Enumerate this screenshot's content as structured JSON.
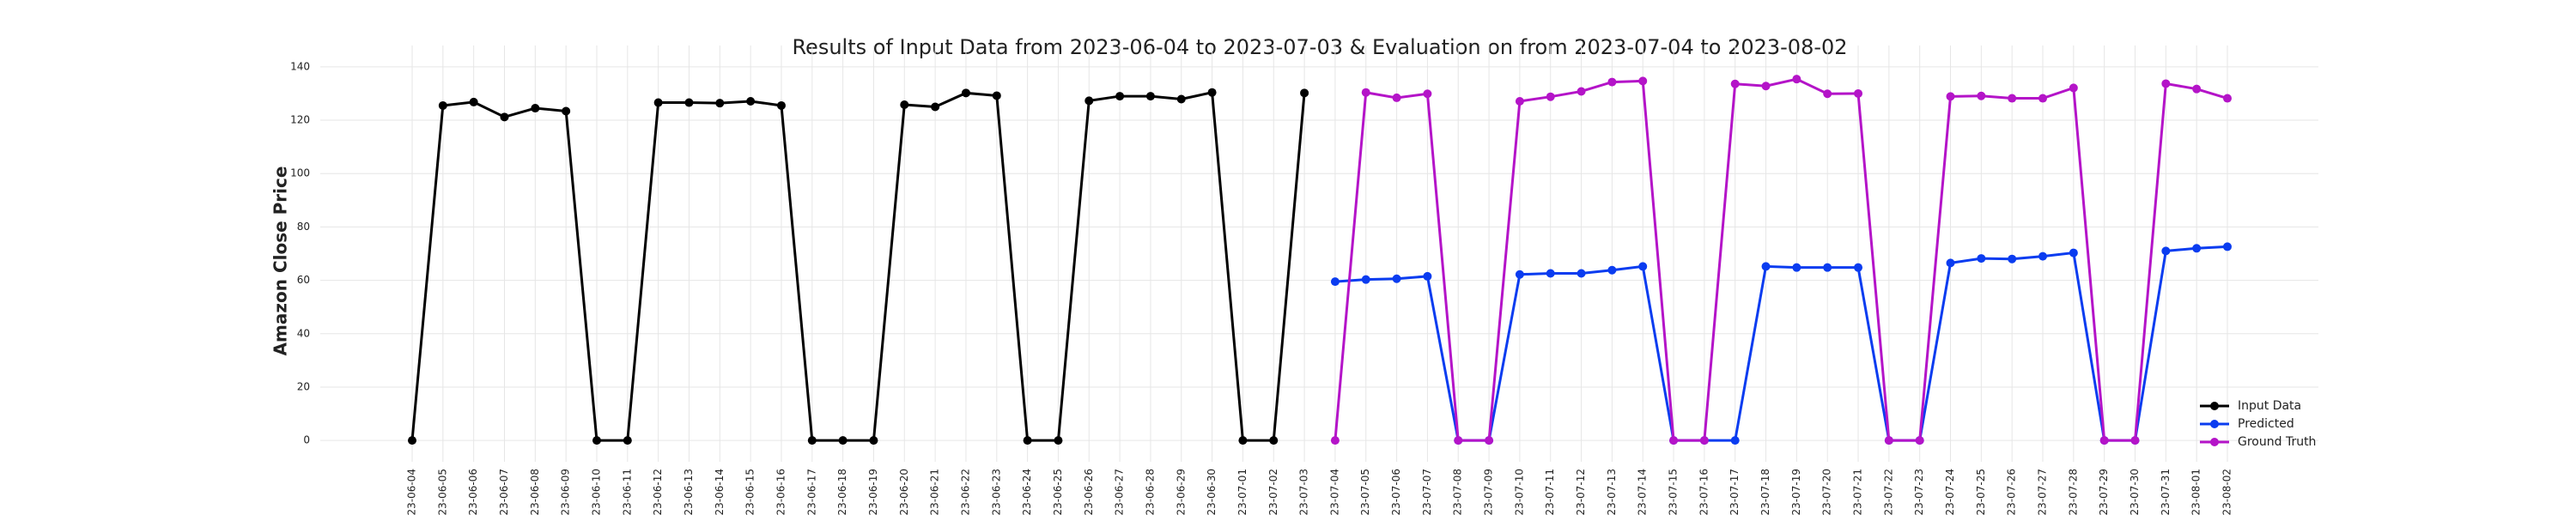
{
  "chart_data": {
    "type": "line",
    "title": "Results of Input Data from 2023-06-04 to 2023-07-03 & Evaluation on from 2023-07-04 to 2023-08-02",
    "y_label": "Amazon Close Price",
    "categories": [
      "2023-06-04",
      "2023-06-05",
      "2023-06-06",
      "2023-06-07",
      "2023-06-08",
      "2023-06-09",
      "2023-06-10",
      "2023-06-11",
      "2023-06-12",
      "2023-06-13",
      "2023-06-14",
      "2023-06-15",
      "2023-06-16",
      "2023-06-17",
      "2023-06-18",
      "2023-06-19",
      "2023-06-20",
      "2023-06-21",
      "2023-06-22",
      "2023-06-23",
      "2023-06-24",
      "2023-06-25",
      "2023-06-26",
      "2023-06-27",
      "2023-06-28",
      "2023-06-29",
      "2023-06-30",
      "2023-07-01",
      "2023-07-02",
      "2023-07-03",
      "2023-07-04",
      "2023-07-05",
      "2023-07-06",
      "2023-07-07",
      "2023-07-08",
      "2023-07-09",
      "2023-07-10",
      "2023-07-11",
      "2023-07-12",
      "2023-07-13",
      "2023-07-14",
      "2023-07-15",
      "2023-07-16",
      "2023-07-17",
      "2023-07-18",
      "2023-07-19",
      "2023-07-20",
      "2023-07-21",
      "2023-07-22",
      "2023-07-23",
      "2023-07-24",
      "2023-07-25",
      "2023-07-26",
      "2023-07-27",
      "2023-07-28",
      "2023-07-29",
      "2023-07-30",
      "2023-07-31",
      "2023-08-01",
      "2023-08-02"
    ],
    "series": [
      {
        "name": "Input Data",
        "color": "#000000",
        "values": [
          0,
          125.5,
          126.8,
          121.2,
          124.5,
          123.4,
          0,
          0,
          126.6,
          126.6,
          126.4,
          127.1,
          125.5,
          0,
          0,
          0,
          125.8,
          125.0,
          130.2,
          129.2,
          0,
          0,
          127.3,
          129.0,
          129.0,
          127.9,
          130.4,
          0,
          0,
          130.2,
          null,
          null,
          null,
          null,
          null,
          null,
          null,
          null,
          null,
          null,
          null,
          null,
          null,
          null,
          null,
          null,
          null,
          null,
          null,
          null,
          null,
          null,
          null,
          null,
          null,
          null,
          null,
          null,
          null,
          null
        ]
      },
      {
        "name": "Predicted",
        "color": "#0a3cf0",
        "values": [
          null,
          null,
          null,
          null,
          null,
          null,
          null,
          null,
          null,
          null,
          null,
          null,
          null,
          null,
          null,
          null,
          null,
          null,
          null,
          null,
          null,
          null,
          null,
          null,
          null,
          null,
          null,
          null,
          null,
          null,
          59.5,
          60.3,
          60.6,
          61.5,
          0,
          0,
          62.2,
          62.6,
          62.6,
          63.8,
          65.2,
          0,
          0,
          0,
          65.2,
          64.8,
          64.8,
          64.8,
          0,
          0,
          66.5,
          68.2,
          68.0,
          69.0,
          70.3,
          0,
          0,
          71.0,
          72.0,
          72.6
        ]
      },
      {
        "name": "Ground Truth",
        "color": "#b414c8",
        "values": [
          null,
          null,
          null,
          null,
          null,
          null,
          null,
          null,
          null,
          null,
          null,
          null,
          null,
          null,
          null,
          null,
          null,
          null,
          null,
          null,
          null,
          null,
          null,
          null,
          null,
          null,
          null,
          null,
          null,
          null,
          0,
          130.4,
          128.4,
          129.9,
          0,
          0,
          127.1,
          128.8,
          130.8,
          134.3,
          134.7,
          0,
          0,
          133.6,
          132.8,
          135.4,
          129.9,
          130.0,
          0,
          0,
          128.9,
          129.1,
          128.2,
          128.2,
          132.1,
          0,
          0,
          133.7,
          131.7,
          128.2
        ]
      }
    ],
    "ylim": [
      -8,
      148
    ],
    "yticks": [
      0,
      20,
      40,
      60,
      80,
      100,
      120,
      140
    ],
    "grid": true,
    "legend": "lower right"
  }
}
